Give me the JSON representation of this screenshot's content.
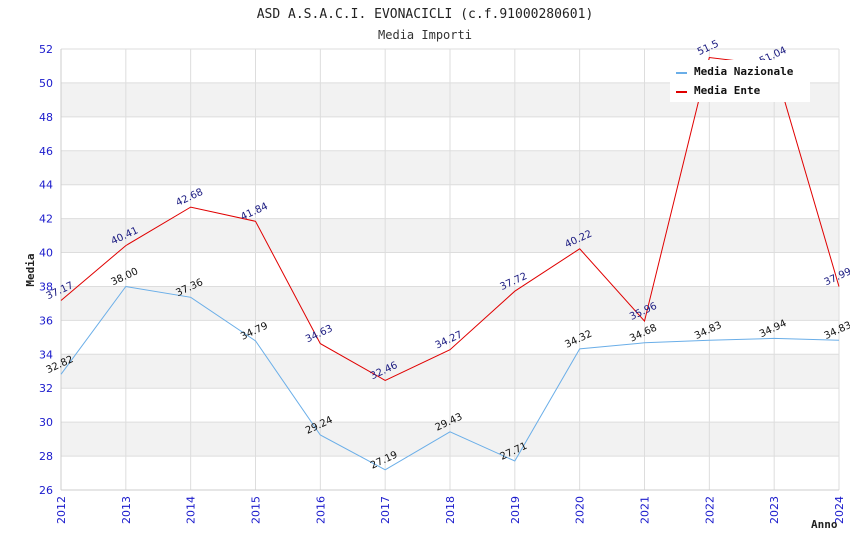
{
  "chart_data": {
    "type": "line",
    "title": "ASD A.S.A.C.I. EVONACICLI (c.f.91000280601)",
    "subtitle": "Media Importi",
    "xlabel": "Anno",
    "ylabel": "Media",
    "ylim": [
      26,
      52
    ],
    "yticks": [
      26,
      28,
      30,
      32,
      34,
      36,
      38,
      40,
      42,
      44,
      46,
      48,
      50,
      52
    ],
    "x": [
      "2012",
      "2013",
      "2014",
      "2015",
      "2016",
      "2017",
      "2018",
      "2019",
      "2020",
      "2021",
      "2022",
      "2023",
      "2024"
    ],
    "grid": true,
    "legend": "top-right",
    "series": [
      {
        "name": "Media Nazionale",
        "color": "#6aaee8",
        "label_color": "#111111",
        "values": [
          32.82,
          38.0,
          37.36,
          34.79,
          29.24,
          27.19,
          29.43,
          27.71,
          34.32,
          34.68,
          34.83,
          34.94,
          34.83
        ],
        "labels": [
          "32.82",
          "38.00",
          "37.36",
          "34.79",
          "29.24",
          "27.19",
          "29.43",
          "27.71",
          "34.32",
          "34.68",
          "34.83",
          "34.94",
          "34.83"
        ]
      },
      {
        "name": "Media Ente",
        "color": "#e00000",
        "label_color": "#1a1a80",
        "values": [
          37.17,
          40.41,
          42.68,
          41.84,
          34.63,
          32.46,
          34.27,
          37.72,
          40.22,
          35.96,
          51.5,
          51.04,
          37.99
        ],
        "labels": [
          "37.17",
          "40.41",
          "42.68",
          "41.84",
          "34.63",
          "32.46",
          "34.27",
          "37.72",
          "40.22",
          "35.96",
          "51.5",
          "51.04",
          "37.99"
        ]
      }
    ]
  }
}
